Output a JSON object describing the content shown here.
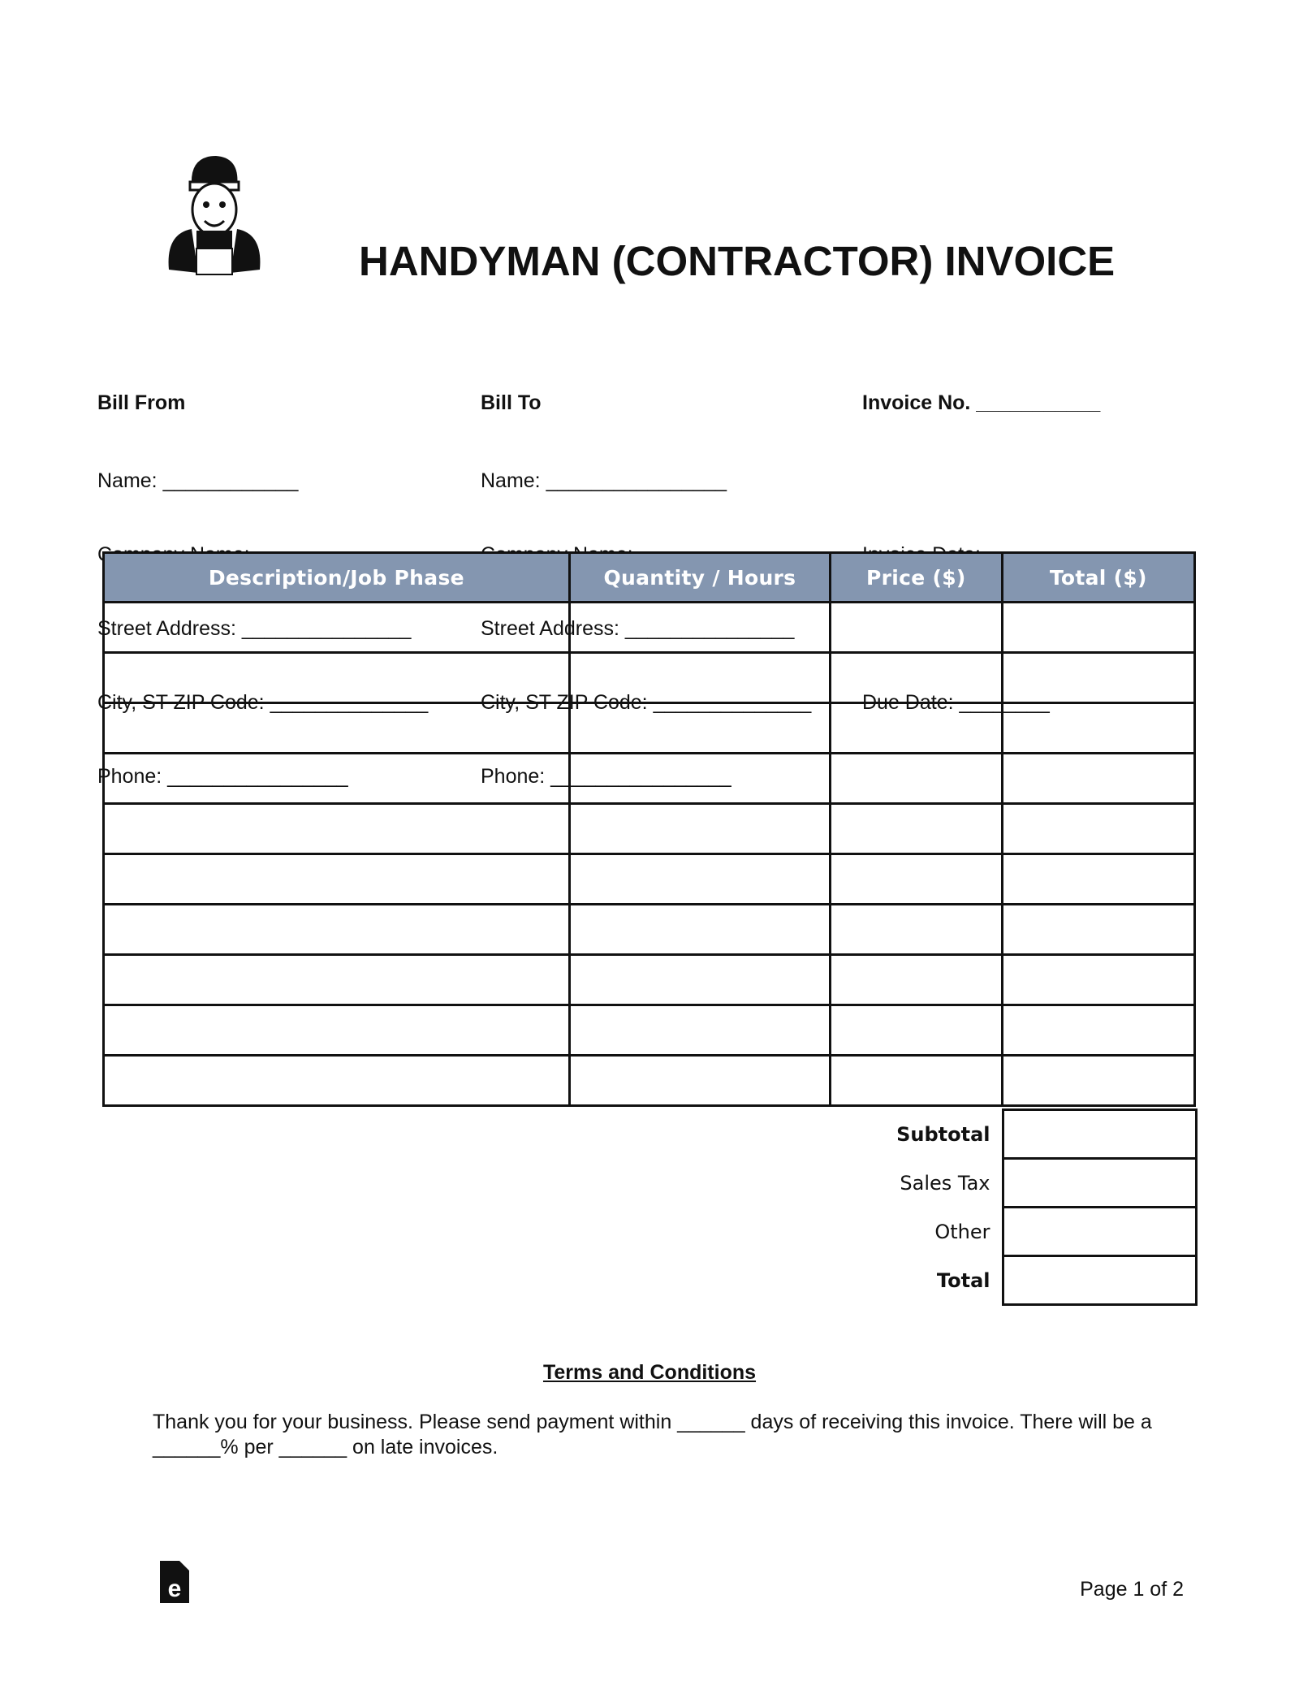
{
  "title": "HANDYMAN (CONTRACTOR) INVOICE",
  "bill_from": {
    "heading": "Bill From",
    "lines": [
      "Name: ____________",
      "Company Name: ______________",
      "Street Address: _______________",
      "City, ST ZIP Code: ______________",
      "Phone: ________________"
    ]
  },
  "bill_to": {
    "heading": "Bill To",
    "lines": [
      "Name: ________________",
      "Company Name: ______________",
      "Street Address: _______________",
      "City, ST ZIP Code: ______________",
      "Phone: ________________"
    ]
  },
  "invoice": {
    "number": "Invoice No. ___________",
    "date": "Invoice Date: ________",
    "due": "Due Date: ________"
  },
  "table": {
    "headers": [
      "Description/Job Phase",
      "Quantity / Hours",
      "Price ($)",
      "Total ($)"
    ],
    "row_count": 10,
    "header_color": "#8496b0"
  },
  "summary": [
    "Subtotal",
    "Sales Tax",
    "Other",
    "Total"
  ],
  "terms": {
    "heading": "Terms and Conditions",
    "text": "Thank you for your business. Please send payment within ______ days of receiving this invoice. There will be a ______% per ______ on late invoices."
  },
  "footer": {
    "page": "Page 1 of 2",
    "logo_icon": "eforms-logo-icon"
  },
  "mascot": "handyman-mascot-icon"
}
